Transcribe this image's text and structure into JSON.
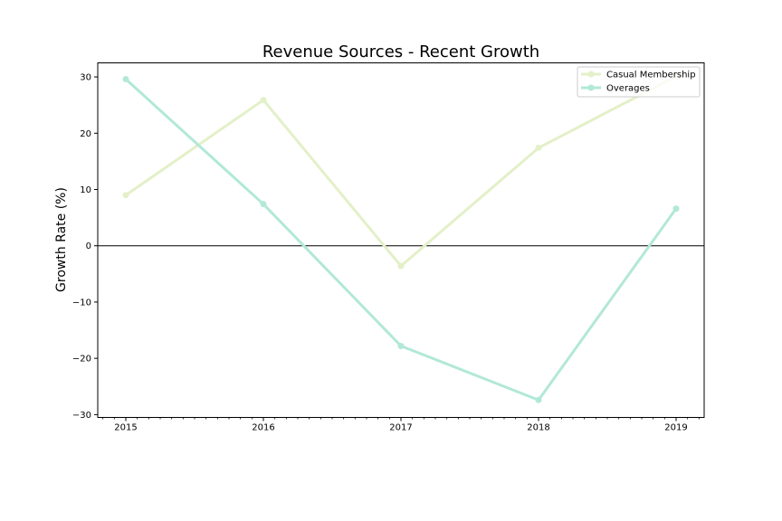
{
  "chart_data": {
    "type": "line",
    "title": "Revenue Sources - Recent Growth",
    "xlabel": "",
    "ylabel": "Growth Rate (%)",
    "x": [
      "2015",
      "2016",
      "2017",
      "2018",
      "2019"
    ],
    "ylim": [
      -30.5,
      32.5
    ],
    "yticks": [
      30,
      20,
      10,
      0,
      -10,
      -20,
      -30
    ],
    "ytick_labels": [
      "30",
      "20",
      "10",
      "0",
      "−10",
      "−20",
      "−30"
    ],
    "zero_line": true,
    "grid": false,
    "legend_position": "top-right",
    "series": [
      {
        "name": "Casual Membership",
        "color": "#e3f0c8",
        "values": [
          9.0,
          25.9,
          -3.6,
          17.4,
          30.1
        ]
      },
      {
        "name": "Overages",
        "color": "#b2e8d8",
        "values": [
          29.6,
          7.4,
          -17.8,
          -27.4,
          6.6
        ]
      }
    ]
  }
}
